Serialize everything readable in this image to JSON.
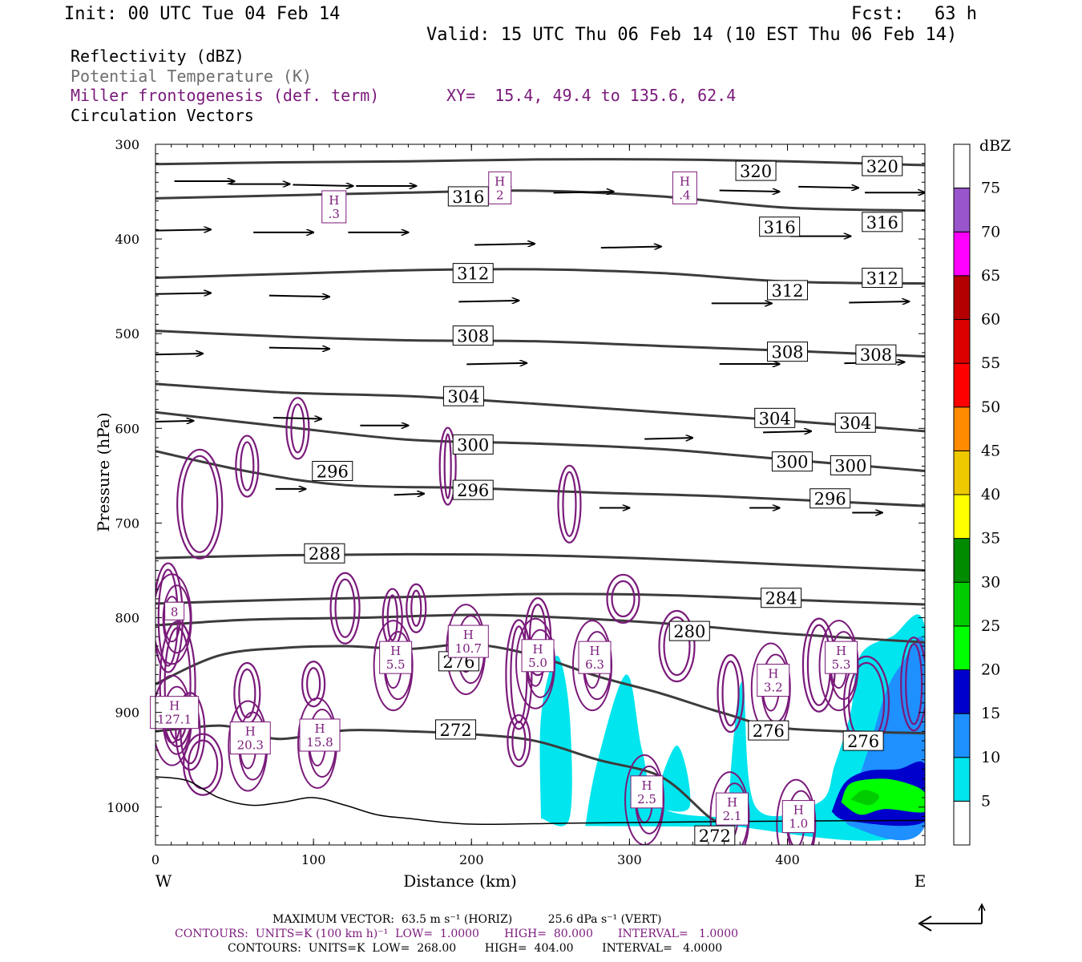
{
  "header": {
    "init": "Init: 00 UTC Tue 04 Feb 14",
    "fcst_label": "Fcst:",
    "fcst_value": "63 h",
    "valid": "Valid: 15 UTC Thu 06 Feb 14 (10 EST Thu 06 Feb 14)"
  },
  "legend": {
    "line1": "Reflectivity (dBZ)",
    "line2": "Potential Temperature (K)",
    "line3": "Miller frontogenesis (def. term)",
    "xy": "XY=  15.4, 49.4 to 135.6, 62.4",
    "line4": "Circulation Vectors"
  },
  "colors": {
    "theta": "#3c3c3c",
    "fronto": "#7a1a7a",
    "legend_gray": "#6e6e6e",
    "legend_purple": "#7a1a7a"
  },
  "chart_data": {
    "type": "cross-section",
    "xlabel": "Distance (km)",
    "ylabel": "Pressure (hPa)",
    "xlim": [
      0,
      487
    ],
    "ylim": [
      1040,
      300
    ],
    "x_ticks": [
      "0",
      "100",
      "200",
      "300",
      "400"
    ],
    "x_tick_values": [
      0,
      100,
      200,
      300,
      400
    ],
    "y_ticks": [
      "300",
      "400",
      "500",
      "600",
      "700",
      "800",
      "900",
      "1000"
    ],
    "y_tick_values": [
      300,
      400,
      500,
      600,
      700,
      800,
      900,
      1000
    ],
    "west_label": "W",
    "east_label": "E",
    "colorbar": {
      "title": "dBZ",
      "levels": [
        "5",
        "10",
        "15",
        "20",
        "25",
        "30",
        "35",
        "40",
        "45",
        "50",
        "55",
        "60",
        "65",
        "70",
        "75"
      ],
      "colors": [
        "#ffffff",
        "#00e5ee",
        "#1e90ff",
        "#0000cd",
        "#00ff00",
        "#00cd00",
        "#008b00",
        "#ffff00",
        "#eec900",
        "#ff8c00",
        "#ff0000",
        "#dd0000",
        "#b40000",
        "#ff00ff",
        "#9955cc"
      ]
    },
    "theta_contours": [
      {
        "label": "320",
        "points": [
          [
            0,
            321
          ],
          [
            80,
            319
          ],
          [
            160,
            318
          ],
          [
            240,
            316
          ],
          [
            320,
            316
          ],
          [
            400,
            318
          ],
          [
            487,
            322
          ]
        ],
        "labels_at": [
          [
            380,
            328
          ],
          [
            460,
            323
          ]
        ]
      },
      {
        "label": "316",
        "points": [
          [
            0,
            357
          ],
          [
            80,
            354
          ],
          [
            160,
            351
          ],
          [
            240,
            349
          ],
          [
            320,
            355
          ],
          [
            400,
            367
          ],
          [
            487,
            370
          ]
        ],
        "labels_at": [
          [
            198,
            355
          ],
          [
            395,
            387
          ],
          [
            460,
            382
          ]
        ]
      },
      {
        "label": "312",
        "points": [
          [
            0,
            441
          ],
          [
            80,
            437
          ],
          [
            160,
            433
          ],
          [
            240,
            432
          ],
          [
            320,
            436
          ],
          [
            400,
            445
          ],
          [
            487,
            447
          ]
        ],
        "labels_at": [
          [
            201,
            436
          ],
          [
            400,
            454
          ],
          [
            460,
            441
          ]
        ]
      },
      {
        "label": "308",
        "points": [
          [
            0,
            497
          ],
          [
            80,
            503
          ],
          [
            160,
            507
          ],
          [
            240,
            508
          ],
          [
            320,
            513
          ],
          [
            400,
            518
          ],
          [
            487,
            524
          ]
        ],
        "labels_at": [
          [
            201,
            502
          ],
          [
            400,
            519
          ],
          [
            456,
            522
          ]
        ]
      },
      {
        "label": "304",
        "points": [
          [
            0,
            553
          ],
          [
            80,
            562
          ],
          [
            160,
            566
          ],
          [
            240,
            574
          ],
          [
            320,
            583
          ],
          [
            400,
            592
          ],
          [
            487,
            603
          ]
        ],
        "labels_at": [
          [
            195,
            566
          ],
          [
            392,
            589
          ],
          [
            443,
            594
          ]
        ]
      },
      {
        "label": "300",
        "points": [
          [
            0,
            583
          ],
          [
            80,
            598
          ],
          [
            160,
            612
          ],
          [
            240,
            616
          ],
          [
            320,
            622
          ],
          [
            400,
            633
          ],
          [
            487,
            645
          ]
        ],
        "labels_at": [
          [
            201,
            617
          ],
          [
            403,
            635
          ],
          [
            440,
            639
          ]
        ]
      },
      {
        "label": "296",
        "points": [
          [
            0,
            624
          ],
          [
            60,
            646
          ],
          [
            120,
            660
          ],
          [
            200,
            663
          ],
          [
            280,
            668
          ],
          [
            360,
            672
          ],
          [
            487,
            682
          ]
        ],
        "labels_at": [
          [
            112,
            645
          ],
          [
            201,
            665
          ],
          [
            427,
            674
          ]
        ]
      },
      {
        "label": "288",
        "points": [
          [
            0,
            737
          ],
          [
            80,
            734
          ],
          [
            160,
            733
          ],
          [
            240,
            734
          ],
          [
            320,
            738
          ],
          [
            400,
            744
          ],
          [
            487,
            750
          ]
        ],
        "labels_at": [
          [
            107,
            732
          ]
        ]
      },
      {
        "label": "284",
        "points": [
          [
            0,
            785
          ],
          [
            80,
            781
          ],
          [
            160,
            778
          ],
          [
            240,
            775
          ],
          [
            320,
            776
          ],
          [
            400,
            781
          ],
          [
            487,
            786
          ]
        ],
        "labels_at": [
          [
            396,
            779
          ]
        ]
      },
      {
        "label": "280",
        "points": [
          [
            0,
            808
          ],
          [
            60,
            802
          ],
          [
            130,
            800
          ],
          [
            200,
            797
          ],
          [
            260,
            800
          ],
          [
            330,
            807
          ],
          [
            400,
            817
          ],
          [
            487,
            826
          ]
        ],
        "labels_at": [
          [
            338,
            814
          ]
        ]
      },
      {
        "label": "276",
        "points": [
          [
            0,
            870
          ],
          [
            40,
            840
          ],
          [
            80,
            832
          ],
          [
            120,
            830
          ],
          [
            160,
            833
          ],
          [
            200,
            828
          ],
          [
            240,
            840
          ],
          [
            280,
            862
          ],
          [
            320,
            880
          ],
          [
            360,
            901
          ],
          [
            400,
            917
          ],
          [
            487,
            922
          ]
        ],
        "labels_at": [
          [
            192,
            846
          ],
          [
            388,
            919
          ],
          [
            448,
            930
          ]
        ]
      },
      {
        "label": "272",
        "points": [
          [
            0,
            920
          ],
          [
            40,
            914
          ],
          [
            60,
            921
          ],
          [
            80,
            928
          ],
          [
            120,
            919
          ],
          [
            160,
            920
          ],
          [
            200,
            923
          ],
          [
            240,
            930
          ],
          [
            280,
            950
          ],
          [
            320,
            968
          ],
          [
            350,
            1010
          ],
          [
            360,
            1017
          ]
        ],
        "labels_at": [
          [
            190,
            918
          ],
          [
            354,
            1030
          ]
        ]
      }
    ],
    "circulation_vectors": [
      {
        "x": 50,
        "p": 339,
        "u": 1,
        "w": 0
      },
      {
        "x": 85,
        "p": 342,
        "u": 1,
        "w": 0
      },
      {
        "x": 125,
        "p": 344,
        "u": 1,
        "w": -0.05
      },
      {
        "x": 165,
        "p": 344,
        "u": 1,
        "w": 0
      },
      {
        "x": 225,
        "p": 345,
        "u": 1,
        "w": 0.05
      },
      {
        "x": 290,
        "p": 350,
        "u": 1,
        "w": 0.05
      },
      {
        "x": 395,
        "p": 350,
        "u": 1,
        "w": -0.05
      },
      {
        "x": 445,
        "p": 346,
        "u": 1,
        "w": -0.05
      },
      {
        "x": 487,
        "p": 351,
        "u": 1,
        "w": 0
      },
      {
        "x": 35,
        "p": 390,
        "u": 1,
        "w": 0.05
      },
      {
        "x": 100,
        "p": 393,
        "u": 1,
        "w": 0
      },
      {
        "x": 160,
        "p": 393,
        "u": 1,
        "w": 0
      },
      {
        "x": 240,
        "p": 405,
        "u": 1,
        "w": 0.05
      },
      {
        "x": 320,
        "p": 408,
        "u": 1,
        "w": 0.05
      },
      {
        "x": 440,
        "p": 397,
        "u": 1,
        "w": 0
      },
      {
        "x": 35,
        "p": 457,
        "u": 1,
        "w": 0.05
      },
      {
        "x": 110,
        "p": 461,
        "u": 1,
        "w": -0.05
      },
      {
        "x": 230,
        "p": 465,
        "u": 1,
        "w": 0.05
      },
      {
        "x": 390,
        "p": 468,
        "u": 1,
        "w": 0
      },
      {
        "x": 477,
        "p": 466,
        "u": 1,
        "w": 0.05
      },
      {
        "x": 30,
        "p": 521,
        "u": 1,
        "w": 0.05
      },
      {
        "x": 110,
        "p": 516,
        "u": 1,
        "w": -0.05
      },
      {
        "x": 235,
        "p": 531,
        "u": 1,
        "w": 0.05
      },
      {
        "x": 395,
        "p": 532,
        "u": 1,
        "w": 0
      },
      {
        "x": 474,
        "p": 530,
        "u": 1,
        "w": 0.05
      },
      {
        "x": 24,
        "p": 592,
        "u": 0.8,
        "w": 0.05
      },
      {
        "x": 105,
        "p": 590,
        "u": 0.8,
        "w": -0.05
      },
      {
        "x": 160,
        "p": 597,
        "u": 0.8,
        "w": 0
      },
      {
        "x": 340,
        "p": 610,
        "u": 0.8,
        "w": 0.05
      },
      {
        "x": 415,
        "p": 603,
        "u": 0.8,
        "w": 0.05
      },
      {
        "x": 95,
        "p": 664,
        "u": 0.5,
        "w": 0
      },
      {
        "x": 170,
        "p": 669,
        "u": 0.5,
        "w": 0.05
      },
      {
        "x": 300,
        "p": 684,
        "u": 0.5,
        "w": 0
      },
      {
        "x": 395,
        "p": 684,
        "u": 0.5,
        "w": 0
      },
      {
        "x": 460,
        "p": 689,
        "u": 0.5,
        "w": 0
      }
    ],
    "reflectivity_regions": [
      {
        "color": "#00e5ee",
        "points": [
          [
            244,
            1012
          ],
          [
            244,
            905
          ],
          [
            254,
            840
          ],
          [
            262,
            900
          ],
          [
            262,
            1012
          ]
        ]
      },
      {
        "color": "#00e5ee",
        "points": [
          [
            272,
            1020
          ],
          [
            280,
            950
          ],
          [
            298,
            860
          ],
          [
            308,
            940
          ],
          [
            320,
            1000
          ],
          [
            364,
            1012
          ],
          [
            364,
            1020
          ]
        ]
      },
      {
        "color": "#00e5ee",
        "points": [
          [
            314,
            1000
          ],
          [
            330,
            935
          ],
          [
            338,
            1000
          ]
        ]
      },
      {
        "color": "#00e5ee",
        "points": [
          [
            362,
            1020
          ],
          [
            366,
            925
          ],
          [
            372,
            870
          ],
          [
            380,
            1000
          ],
          [
            420,
            995
          ],
          [
            430,
            955
          ],
          [
            440,
            900
          ],
          [
            446,
            840
          ],
          [
            466,
            820
          ],
          [
            487,
            810
          ],
          [
            487,
            1020
          ]
        ]
      },
      {
        "color": "#1e90ff",
        "points": [
          [
            440,
            995
          ],
          [
            452,
            935
          ],
          [
            462,
            880
          ],
          [
            472,
            850
          ],
          [
            487,
            830
          ],
          [
            487,
            1020
          ],
          [
            440,
            1020
          ]
        ]
      },
      {
        "color": "#0000cd",
        "points": [
          [
            428,
            1005
          ],
          [
            436,
            975
          ],
          [
            450,
            962
          ],
          [
            470,
            960
          ],
          [
            487,
            955
          ],
          [
            487,
            1015
          ],
          [
            440,
            1015
          ]
        ]
      },
      {
        "color": "#00ff00",
        "points": [
          [
            434,
            995
          ],
          [
            440,
            975
          ],
          [
            460,
            970
          ],
          [
            476,
            975
          ],
          [
            487,
            985
          ],
          [
            487,
            1005
          ],
          [
            462,
            1002
          ],
          [
            446,
            1008
          ]
        ]
      },
      {
        "color": "#00cd00",
        "points": [
          [
            440,
            992
          ],
          [
            448,
            982
          ],
          [
            458,
            988
          ],
          [
            452,
            998
          ]
        ]
      }
    ],
    "frontogenesis_maxima": [
      {
        "label": "H",
        "value": ".3",
        "x": 113,
        "p": 366
      },
      {
        "label": "H",
        "value": "2",
        "x": 218,
        "p": 346
      },
      {
        "label": "H",
        "value": ".4",
        "x": 335,
        "p": 346
      },
      {
        "label": "H",
        "value": "5.5",
        "x": 152,
        "p": 842
      },
      {
        "label": "H",
        "value": "10.7",
        "x": 198,
        "p": 825
      },
      {
        "label": "H",
        "value": "5.0",
        "x": 242,
        "p": 840
      },
      {
        "label": "H",
        "value": "6.3",
        "x": 278,
        "p": 842
      },
      {
        "label": "H",
        "value": "3.2",
        "x": 391,
        "p": 866
      },
      {
        "label": "H",
        "value": "5.3",
        "x": 434,
        "p": 842
      },
      {
        "label": "H",
        "value": "127.1",
        "x": 12,
        "p": 900
      },
      {
        "label": "H",
        "value": "20.3",
        "x": 60,
        "p": 927
      },
      {
        "label": "H",
        "value": "15.8",
        "x": 104,
        "p": 924
      },
      {
        "label": "H",
        "value": "2.5",
        "x": 311,
        "p": 984
      },
      {
        "label": "H",
        "value": "2.1",
        "x": 365,
        "p": 1002
      },
      {
        "label": "H",
        "value": "1.0",
        "x": 407,
        "p": 1010
      },
      {
        "label": "",
        "value": "8",
        "x": 12,
        "p": 793
      }
    ]
  },
  "footer": {
    "max_vector": "MAXIMUM VECTOR:  63.5 m s⁻¹ (HORIZ)          25.6 dPa s⁻¹ (VERT)",
    "contours1": "CONTOURS:  UNITS=K (100 km h)⁻¹  LOW=  1.0000       HIGH=  80.000       INTERVAL=   1.0000",
    "contours2": "CONTOURS:  UNITS=K  LOW=  268.00        HIGH=  404.00        INTERVAL=   4.0000"
  }
}
